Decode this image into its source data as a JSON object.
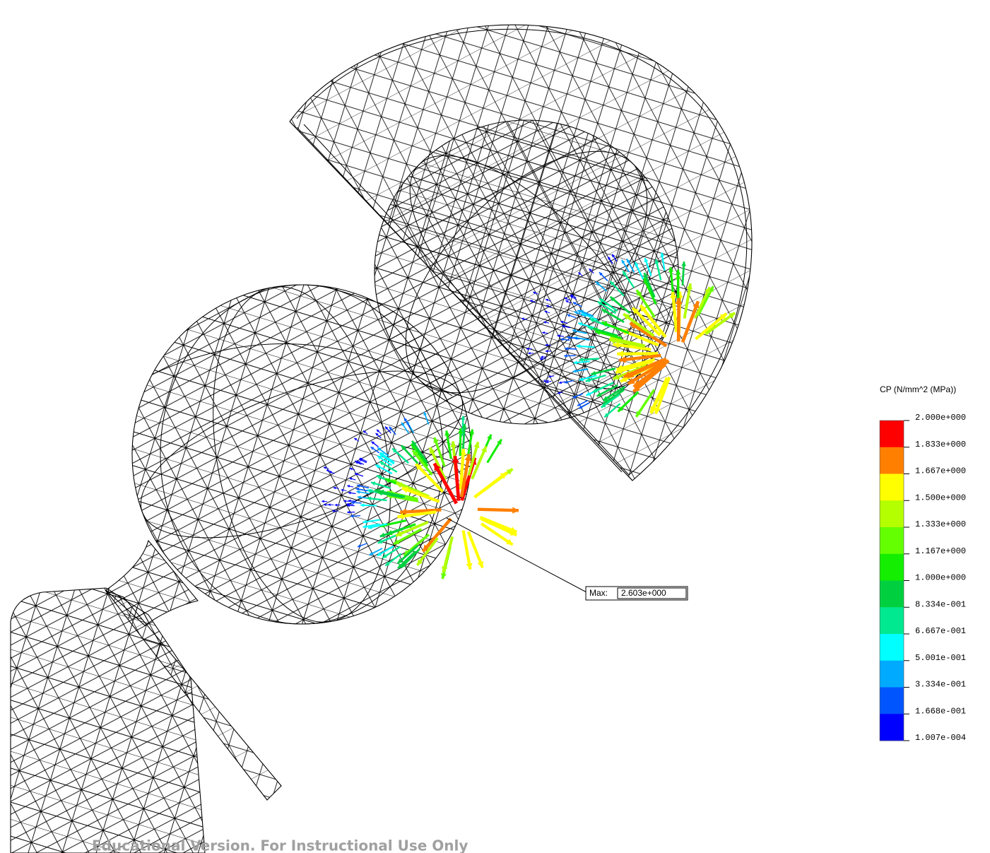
{
  "legend": {
    "title": "CP (N/mm^2 (MPa))",
    "labels": [
      "2.000e+000",
      "1.833e+000",
      "1.667e+000",
      "1.500e+000",
      "1.333e+000",
      "1.167e+000",
      "1.000e+000",
      "8.334e-001",
      "6.667e-001",
      "5.001e-001",
      "3.334e-001",
      "1.668e-001",
      "1.007e-004"
    ],
    "colors": [
      "#ff0000",
      "#ff7f00",
      "#ffff00",
      "#b4ff00",
      "#64ff00",
      "#14ee00",
      "#00d040",
      "#00e890",
      "#00ffff",
      "#00aaff",
      "#0055ff",
      "#0000ff"
    ]
  },
  "annotation": {
    "prefix": "Max:",
    "value": "2.603e+000"
  },
  "watermark": "Educational Version. For Instructional Use Only"
}
